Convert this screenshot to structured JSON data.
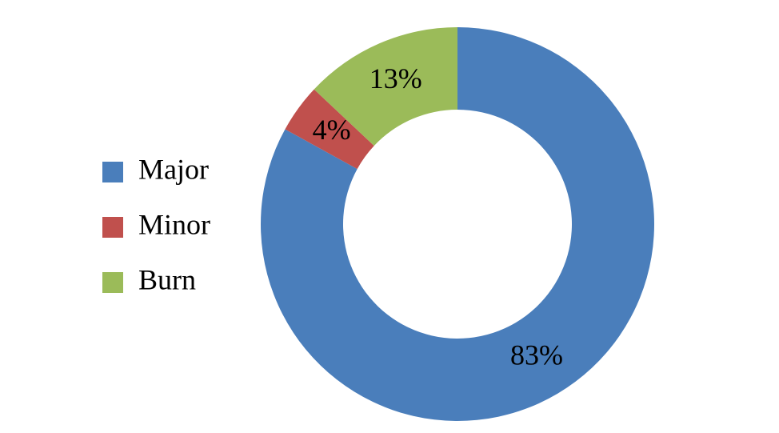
{
  "chart_data": {
    "type": "donut",
    "categories": [
      "Major",
      "Minor",
      "Burn"
    ],
    "values": [
      83,
      4,
      13
    ],
    "value_labels": [
      "83%",
      "4%",
      "13%"
    ],
    "colors": [
      "#4a7ebb",
      "#c0504d",
      "#9bbb59"
    ],
    "legend": "left"
  }
}
